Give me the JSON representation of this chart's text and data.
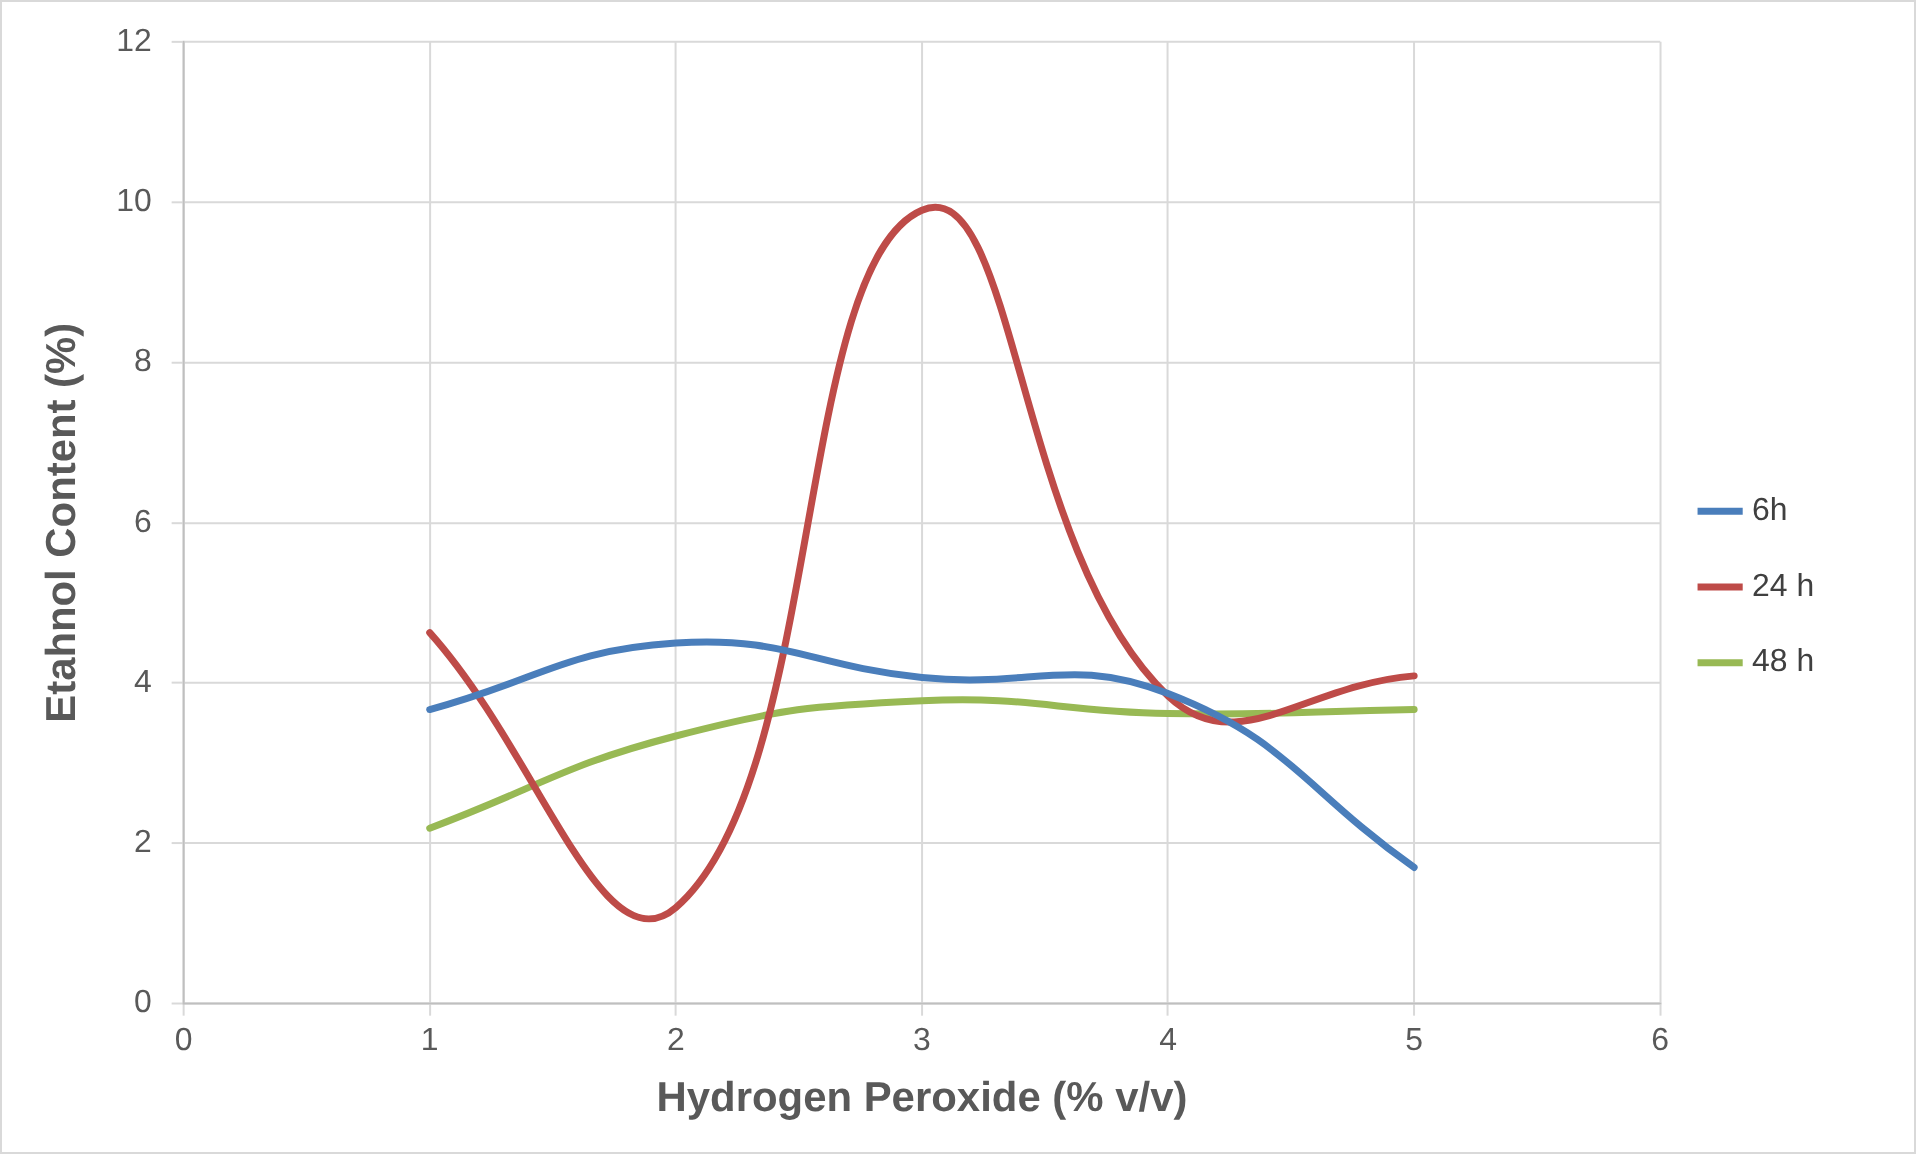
{
  "chart_data": {
    "type": "line",
    "xlabel": "Hydrogen Peroxide (% v/v)",
    "ylabel": "Etahnol Content (%)",
    "x": [
      1,
      2,
      3,
      4,
      5
    ],
    "series": [
      {
        "name": "6h",
        "color": "#4a7ebb",
        "values": [
          3.67,
          4.5,
          4.07,
          3.87,
          1.7
        ]
      },
      {
        "name": "24 h",
        "color": "#be4b48",
        "values": [
          4.63,
          1.2,
          9.9,
          3.84,
          4.09
        ]
      },
      {
        "name": "48 h",
        "color": "#98b954",
        "values": [
          2.19,
          3.34,
          3.78,
          3.62,
          3.67
        ]
      }
    ],
    "xlim": [
      0,
      6
    ],
    "xticks": [
      0,
      1,
      2,
      3,
      4,
      5,
      6
    ],
    "ylim": [
      0,
      12
    ],
    "yticks": [
      0,
      2,
      4,
      6,
      8,
      10,
      12
    ],
    "grid": true,
    "legend": "right",
    "marker": "none",
    "line_style": "solid"
  }
}
